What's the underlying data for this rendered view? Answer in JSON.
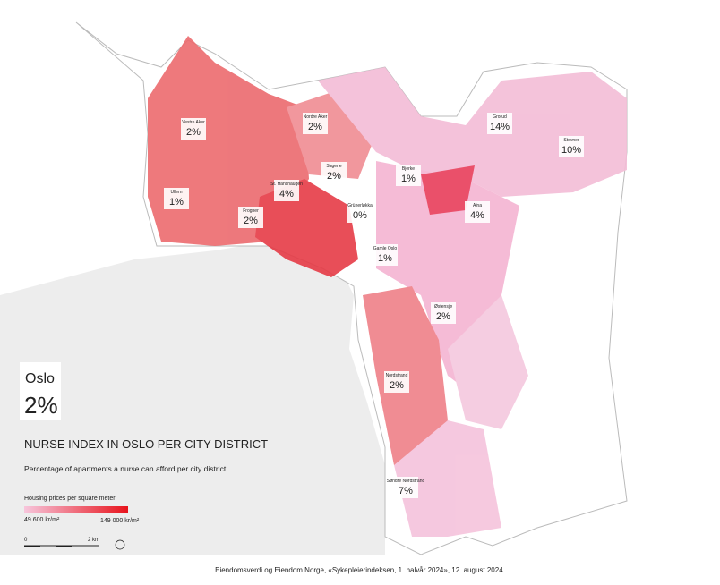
{
  "header": {
    "city": "Oslo",
    "index": "2%"
  },
  "title": "NURSE INDEX IN OSLO PER CITY DISTRICT",
  "subtitle": "Percentage of apartments a nurse can afford per city district",
  "legend": {
    "title": "Housing prices per square meter",
    "min": "49 600 kr/m²",
    "max": "149 000 kr/m²"
  },
  "scale": {
    "start": "0",
    "end": "2 km"
  },
  "source": "Eiendomsverdi og Eiendom Norge, «Sykepleierindeksen, 1. halvår 2024», 12. august 2024.",
  "districts": [
    {
      "name": "Vestre Aker",
      "value": "2%"
    },
    {
      "name": "Nordre Aker",
      "value": "2%"
    },
    {
      "name": "Grorud",
      "value": "14%"
    },
    {
      "name": "Stovner",
      "value": "10%"
    },
    {
      "name": "Sagene",
      "value": "2%"
    },
    {
      "name": "Bjerke",
      "value": "1%"
    },
    {
      "name": "St. Hanshaugen",
      "value": "4%"
    },
    {
      "name": "Ullern",
      "value": "1%"
    },
    {
      "name": "Frogner",
      "value": "2%"
    },
    {
      "name": "Grünerløkka",
      "value": "0%"
    },
    {
      "name": "Alna",
      "value": "4%"
    },
    {
      "name": "Gamle Oslo",
      "value": "1%"
    },
    {
      "name": "Østensjø",
      "value": "2%"
    },
    {
      "name": "Nordstrand",
      "value": "2%"
    },
    {
      "name": "Søndre Nordstrand",
      "value": "7%"
    }
  ]
}
